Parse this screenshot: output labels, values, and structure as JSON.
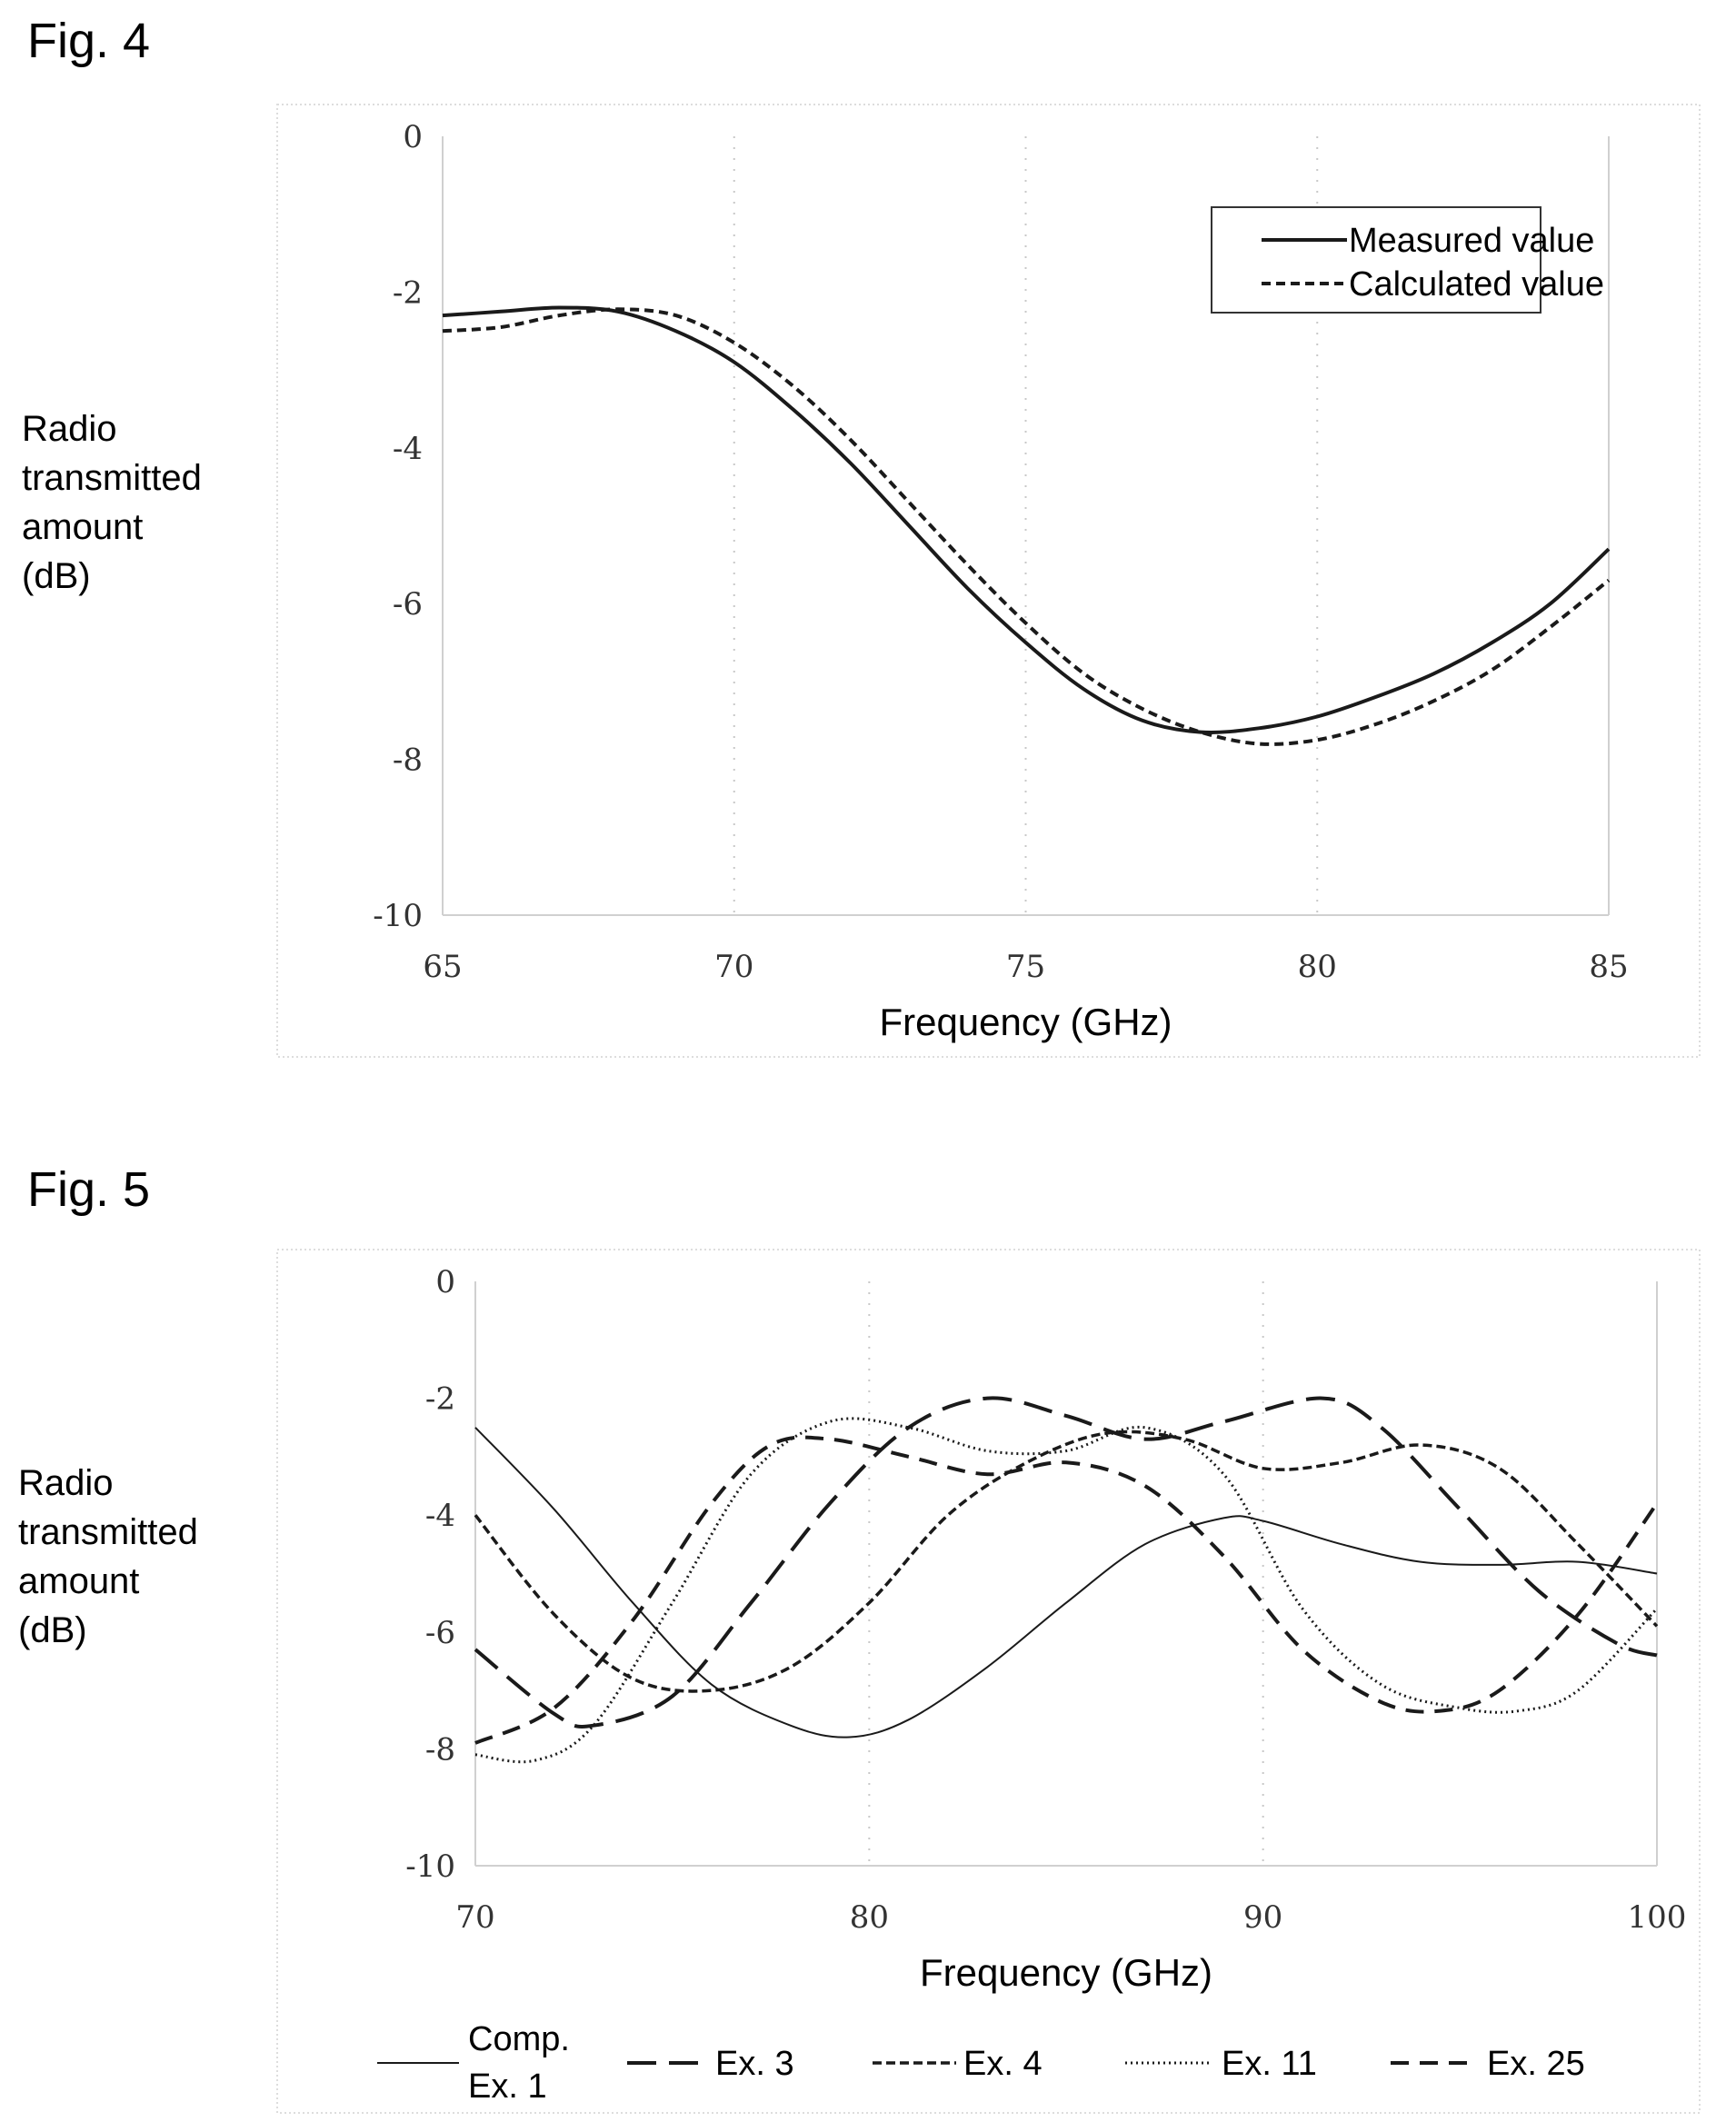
{
  "chart_data": [
    {
      "figure_label": "Fig. 4",
      "type": "line",
      "xlabel": "Frequency (GHz)",
      "ylabel_lines": [
        "Radio",
        "transmitted",
        "amount",
        "(dB)"
      ],
      "xlim": [
        65,
        85
      ],
      "ylim": [
        -10,
        0
      ],
      "xticks": [
        65,
        70,
        75,
        80,
        85
      ],
      "yticks": [
        0,
        -2,
        -4,
        -6,
        -8,
        -10
      ],
      "legend_position": "top-right",
      "series": [
        {
          "name": "Measured value",
          "style": "solid",
          "x": [
            65,
            66,
            67,
            68,
            69,
            70,
            71,
            72,
            73,
            74,
            75,
            76,
            77,
            78,
            79,
            80,
            81,
            82,
            83,
            84,
            85
          ],
          "y": [
            -2.3,
            -2.25,
            -2.2,
            -2.25,
            -2.5,
            -2.9,
            -3.5,
            -4.2,
            -5.0,
            -5.8,
            -6.5,
            -7.1,
            -7.5,
            -7.65,
            -7.6,
            -7.45,
            -7.2,
            -6.9,
            -6.5,
            -6.0,
            -5.3
          ]
        },
        {
          "name": "Calculated value",
          "style": "dashed",
          "x": [
            65,
            66,
            67,
            68,
            69,
            70,
            71,
            72,
            73,
            74,
            75,
            76,
            77,
            78,
            79,
            80,
            81,
            82,
            83,
            84,
            85
          ],
          "y": [
            -2.5,
            -2.45,
            -2.3,
            -2.22,
            -2.3,
            -2.65,
            -3.2,
            -3.9,
            -4.7,
            -5.5,
            -6.25,
            -6.9,
            -7.35,
            -7.65,
            -7.8,
            -7.75,
            -7.55,
            -7.25,
            -6.85,
            -6.3,
            -5.7
          ]
        }
      ]
    },
    {
      "figure_label": "Fig. 5",
      "type": "line",
      "xlabel": "Frequency (GHz)",
      "ylabel_lines": [
        "Radio",
        "transmitted",
        "amount",
        "(dB)"
      ],
      "xlim": [
        70,
        100
      ],
      "ylim": [
        -10,
        0
      ],
      "xticks": [
        70,
        80,
        90,
        100
      ],
      "yticks": [
        0,
        -2,
        -4,
        -6,
        -8,
        -10
      ],
      "legend_position": "bottom",
      "series": [
        {
          "name": "Comp. Ex. 1",
          "style": "thin-solid",
          "x": [
            70,
            72,
            74,
            76,
            78,
            79.5,
            81,
            83,
            85,
            87,
            89,
            90,
            92,
            94,
            96,
            98,
            100
          ],
          "y": [
            -2.5,
            -3.9,
            -5.5,
            -6.9,
            -7.6,
            -7.8,
            -7.5,
            -6.6,
            -5.5,
            -4.5,
            -4.05,
            -4.1,
            -4.5,
            -4.8,
            -4.85,
            -4.8,
            -5.0
          ]
        },
        {
          "name": "Ex. 3",
          "style": "long-dash",
          "x": [
            70,
            72,
            73,
            75,
            77,
            79,
            81,
            83,
            85,
            87,
            89,
            91.5,
            93,
            95,
            97,
            99,
            100
          ],
          "y": [
            -6.3,
            -7.4,
            -7.6,
            -7.1,
            -5.5,
            -3.8,
            -2.5,
            -2.0,
            -2.3,
            -2.7,
            -2.4,
            -2.0,
            -2.5,
            -3.9,
            -5.3,
            -6.2,
            -6.4
          ]
        },
        {
          "name": "Ex. 4",
          "style": "short-dash",
          "x": [
            70,
            72,
            74,
            76,
            78,
            80,
            82,
            84,
            86,
            88,
            90,
            92,
            94,
            96,
            98,
            100
          ],
          "y": [
            -4.0,
            -5.7,
            -6.8,
            -7.0,
            -6.6,
            -5.5,
            -4.0,
            -3.1,
            -2.6,
            -2.7,
            -3.2,
            -3.1,
            -2.8,
            -3.2,
            -4.5,
            -5.9
          ]
        },
        {
          "name": "Ex. 11",
          "style": "dotted",
          "x": [
            70,
            71.5,
            73,
            75,
            77,
            79,
            81,
            83,
            85,
            87,
            89,
            91,
            93,
            95,
            96.5,
            98,
            100
          ],
          "y": [
            -8.1,
            -8.2,
            -7.6,
            -5.5,
            -3.3,
            -2.4,
            -2.5,
            -2.9,
            -2.9,
            -2.5,
            -3.3,
            -5.6,
            -6.9,
            -7.3,
            -7.35,
            -7.0,
            -5.6
          ]
        },
        {
          "name": "Ex. 25",
          "style": "medium-dash",
          "x": [
            70,
            72,
            74,
            76,
            77.5,
            79,
            81,
            83,
            85,
            87,
            89,
            91,
            93,
            94.5,
            96,
            98,
            100
          ],
          "y": [
            -7.9,
            -7.3,
            -5.8,
            -3.8,
            -2.8,
            -2.7,
            -3.0,
            -3.3,
            -3.1,
            -3.5,
            -4.7,
            -6.3,
            -7.2,
            -7.35,
            -7.0,
            -5.7,
            -3.8
          ]
        }
      ]
    }
  ]
}
